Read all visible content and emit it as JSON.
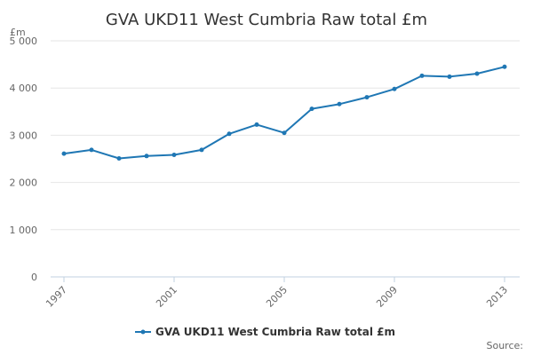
{
  "chart_data": {
    "type": "line",
    "title": "GVA UKD11 West Cumbria Raw total £m",
    "unit_label": "£m",
    "x": [
      1997,
      1998,
      1999,
      2000,
      2001,
      2002,
      2003,
      2004,
      2005,
      2006,
      2007,
      2008,
      2009,
      2010,
      2011,
      2012,
      2013
    ],
    "x_tick_labels": [
      "1997",
      "2001",
      "2005",
      "2009",
      "2013"
    ],
    "y_tick_labels": [
      "0",
      "1 000",
      "2 000",
      "3 000",
      "4 000",
      "5 000"
    ],
    "ylim": [
      0,
      5000
    ],
    "grid": true,
    "legend_position": "bottom-center",
    "series": [
      {
        "name": "GVA UKD11 West Cumbria Raw total £m",
        "color": "#1f77b4",
        "values": [
          2610,
          2690,
          2510,
          2560,
          2585,
          2690,
          3030,
          3225,
          3050,
          3560,
          3660,
          3805,
          3980,
          4260,
          4240,
          4305,
          4450
        ]
      }
    ],
    "source_label": "Source:"
  }
}
